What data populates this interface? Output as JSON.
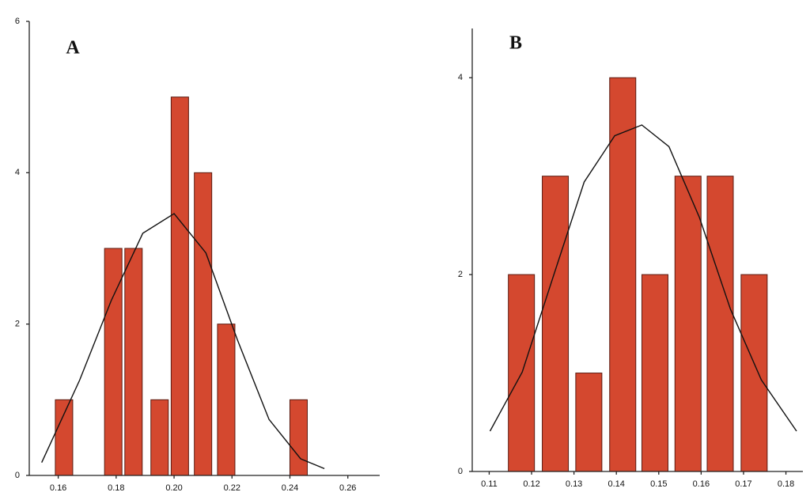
{
  "chart_data": [
    {
      "type": "bar",
      "title": "A",
      "x": [
        0.162,
        0.179,
        0.186,
        0.195,
        0.202,
        0.21,
        0.218,
        0.243
      ],
      "values": [
        1,
        3,
        3,
        1,
        5,
        4,
        2,
        1
      ],
      "color": "#d4482f",
      "fit_x": [
        0.1543,
        0.1674,
        0.1783,
        0.1892,
        0.2,
        0.211,
        0.2219,
        0.2328,
        0.2437,
        0.2519
      ],
      "fit_values": [
        0.17,
        1.26,
        2.31,
        3.2,
        3.46,
        2.94,
        1.79,
        0.74,
        0.22,
        0.09
      ],
      "fit_color": "#111111",
      "xlim": [
        0.15,
        0.271
      ],
      "ylim": [
        0,
        6
      ],
      "xticks": [
        0.16,
        0.18,
        {
          "value": 0.2,
          "label": "0.20"
        },
        0.22,
        0.24,
        0.26
      ],
      "yticks": [
        0,
        2,
        4,
        6
      ]
    },
    {
      "type": "bar",
      "title": "B",
      "x": [
        0.1176,
        0.1256,
        0.1335,
        0.1415,
        0.1491,
        0.1569,
        0.1645,
        0.1725
      ],
      "values": [
        2,
        3,
        1,
        4,
        2,
        3,
        3,
        2
      ],
      "color": "#d4482f",
      "fit_x": [
        0.1102,
        0.1178,
        0.1251,
        0.1324,
        0.1396,
        0.146,
        0.1524,
        0.1596,
        0.1669,
        0.1742,
        0.1825
      ],
      "fit_values": [
        0.41,
        1.01,
        1.98,
        2.94,
        3.41,
        3.52,
        3.3,
        2.58,
        1.65,
        0.93,
        0.41
      ],
      "fit_color": "#111111",
      "xlim": [
        0.106,
        0.184
      ],
      "ylim": [
        0,
        4.5
      ],
      "xticks": [
        0.11,
        0.12,
        0.13,
        0.14,
        0.15,
        0.16,
        0.17,
        0.18
      ],
      "yticks": [
        0,
        2,
        4
      ]
    }
  ]
}
